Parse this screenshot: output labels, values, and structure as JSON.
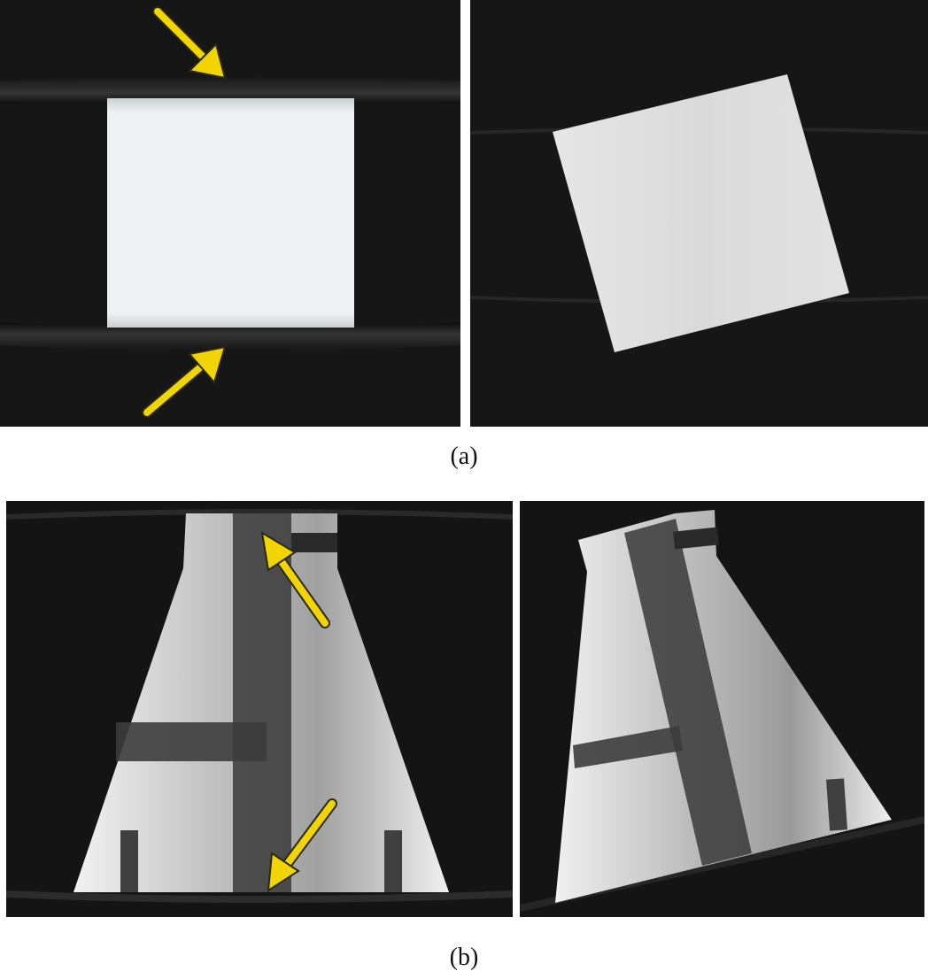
{
  "figure": {
    "row_a": {
      "caption": "(a)",
      "left_panel": {
        "content": "square-phantom-reconstruction-with-streak-artifacts",
        "arrows": 2
      },
      "right_panel": {
        "content": "rotated-square-phantom-reconstruction"
      }
    },
    "row_b": {
      "caption": "(b)",
      "left_panel": {
        "content": "bottle-phantom-reconstruction-with-streak-artifacts",
        "arrows": 2
      },
      "right_panel": {
        "content": "tilted-bottle-phantom-reconstruction"
      }
    },
    "colors": {
      "background": "#161616",
      "phantom": "#e8ecec",
      "arrow": "#f2d400",
      "arrow_outline": "#2a2a10"
    }
  }
}
